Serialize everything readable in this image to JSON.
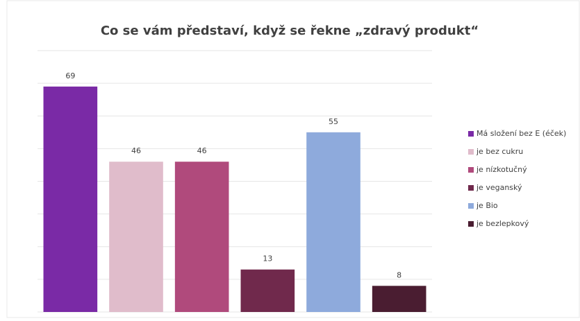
{
  "chart_data": {
    "type": "bar",
    "title": "Co se vám představí, když se řekne „zdravý produkt“",
    "series": [
      {
        "name": "Má složení bez E (éček)",
        "color": "#7a2aa6",
        "values": [
          69
        ]
      },
      {
        "name": "je bez cukru",
        "color": "#e0bccb",
        "values": [
          46
        ]
      },
      {
        "name": "je nízkotučný",
        "color": "#b04a7c",
        "values": [
          46
        ]
      },
      {
        "name": "je veganský",
        "color": "#70294c",
        "values": [
          13
        ]
      },
      {
        "name": "je Bio",
        "color": "#8eaadc",
        "values": [
          55
        ]
      },
      {
        "name": "je bezlepkový",
        "color": "#4a1d31",
        "values": [
          8
        ]
      }
    ],
    "ylim": [
      0,
      80
    ],
    "yticks": [
      0,
      10,
      20,
      30,
      40,
      50,
      60,
      70,
      80
    ],
    "grid": true,
    "legend": "right"
  }
}
